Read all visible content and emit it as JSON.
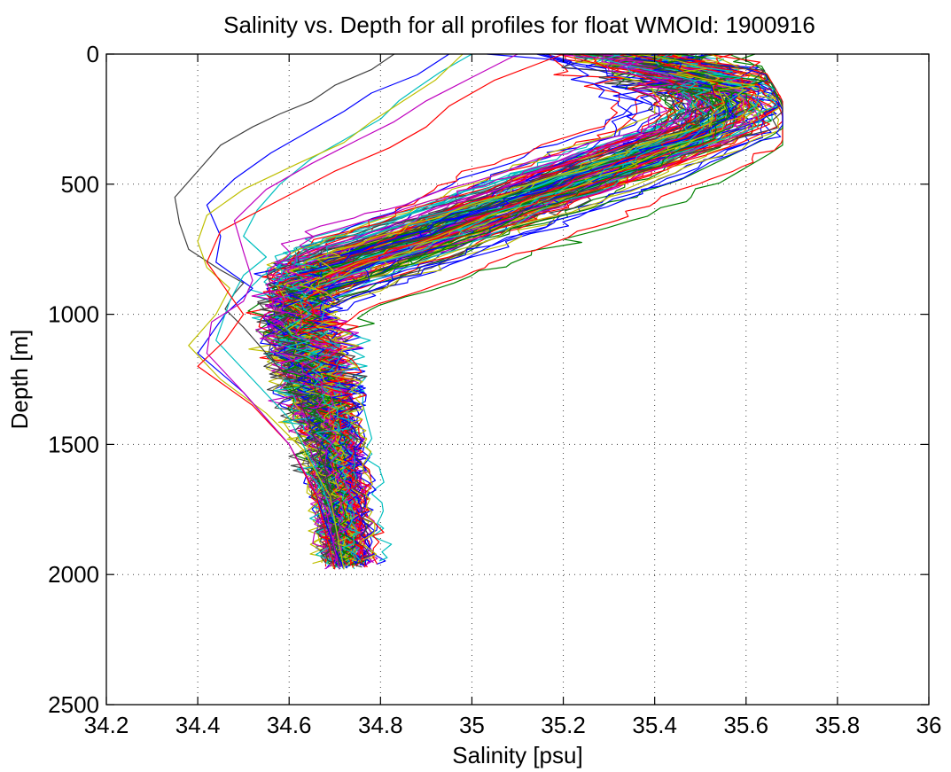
{
  "chart_data": {
    "type": "line",
    "title": "Salinity vs. Depth for all profiles for float WMOId: 1900916",
    "xlabel": "Salinity [psu]",
    "ylabel": "Depth [m]",
    "xlim": [
      34.2,
      36
    ],
    "ylim": [
      0,
      2500
    ],
    "y_reversed": true,
    "grid": true,
    "x_ticks": [
      "34.2",
      "34.4",
      "34.6",
      "34.8",
      "35",
      "35.2",
      "35.4",
      "35.6",
      "35.8",
      "36"
    ],
    "y_ticks": [
      "0",
      "500",
      "1000",
      "1500",
      "2000",
      "2500"
    ],
    "color_cycle": [
      "#0000ff",
      "#008000",
      "#ff0000",
      "#00bfbf",
      "#bf00bf",
      "#bfbf00",
      "#404040"
    ],
    "profile_count_approx": 160,
    "envelope": {
      "depth": [
        0,
        100,
        200,
        300,
        500,
        700,
        850,
        1000,
        1200,
        1500,
        1800,
        1980
      ],
      "typical_salinity": [
        35.35,
        35.5,
        35.55,
        35.5,
        35.2,
        34.9,
        34.65,
        34.6,
        34.66,
        34.7,
        34.72,
        34.73
      ],
      "min_salinity": [
        34.82,
        34.72,
        34.55,
        34.45,
        34.35,
        34.38,
        34.4,
        34.47,
        34.35,
        34.48,
        34.6,
        34.68
      ],
      "max_salinity": [
        35.62,
        35.65,
        35.68,
        35.68,
        35.45,
        35.3,
        35.0,
        34.82,
        34.78,
        34.76,
        34.8,
        34.83
      ]
    },
    "series": [
      {
        "depth": [
          0,
          60,
          120,
          180,
          230,
          280,
          350,
          450,
          550,
          650,
          750,
          830,
          880,
          920,
          980,
          1050,
          1150,
          1250,
          1400,
          1600,
          1800,
          1980
        ],
        "salinity": [
          34.83,
          34.78,
          34.7,
          34.65,
          34.58,
          34.52,
          34.45,
          34.4,
          34.35,
          34.36,
          34.38,
          34.45,
          34.5,
          34.48,
          34.46,
          34.5,
          34.55,
          34.6,
          34.64,
          34.68,
          34.7,
          34.71
        ],
        "color": "#404040"
      },
      {
        "depth": [
          0,
          80,
          150,
          220,
          300,
          380,
          480,
          580,
          700,
          800,
          900,
          1000,
          1150,
          1300,
          1500,
          1700,
          1900,
          1980
        ],
        "salinity": [
          34.95,
          34.88,
          34.78,
          34.72,
          34.64,
          34.56,
          34.48,
          34.42,
          34.45,
          34.44,
          34.52,
          34.46,
          34.4,
          34.5,
          34.6,
          34.66,
          34.7,
          34.72
        ],
        "color": "#0000ff"
      },
      {
        "depth": [
          0,
          70,
          130,
          180,
          250,
          330,
          400,
          500,
          600,
          700,
          780,
          850,
          950,
          1100,
          1250,
          1400,
          1600,
          1800,
          1980
        ],
        "salinity": [
          35.0,
          34.93,
          34.88,
          34.84,
          34.8,
          34.72,
          34.65,
          34.58,
          34.53,
          34.5,
          34.55,
          34.5,
          34.47,
          34.44,
          34.52,
          34.6,
          34.66,
          34.7,
          34.72
        ],
        "color": "#00bfbf"
      },
      {
        "depth": [
          0,
          100,
          180,
          260,
          340,
          420,
          520,
          620,
          720,
          820,
          900,
          1000,
          1120,
          1250,
          1380,
          1520,
          1700,
          1980
        ],
        "salinity": [
          34.98,
          34.92,
          34.85,
          34.78,
          34.72,
          34.62,
          34.5,
          34.42,
          34.4,
          34.42,
          34.47,
          34.44,
          34.38,
          34.45,
          34.55,
          34.63,
          34.69,
          34.72
        ],
        "color": "#bfbf00"
      },
      {
        "depth": [
          0,
          100,
          200,
          280,
          360,
          450,
          560,
          680,
          800,
          900,
          1000,
          1100,
          1200,
          1350,
          1500,
          1700,
          1980
        ],
        "salinity": [
          35.2,
          35.05,
          34.95,
          34.9,
          34.82,
          34.7,
          34.58,
          34.45,
          34.42,
          34.46,
          34.5,
          34.46,
          34.4,
          34.52,
          34.6,
          34.66,
          34.7
        ],
        "color": "#ff0000"
      },
      {
        "depth": [
          0,
          90,
          180,
          260,
          330,
          420,
          520,
          640,
          760,
          870,
          950,
          1030,
          1150,
          1300,
          1500,
          1750,
          1980
        ],
        "salinity": [
          35.1,
          35.0,
          34.9,
          34.83,
          34.75,
          34.65,
          34.55,
          34.48,
          34.5,
          34.52,
          34.5,
          34.43,
          34.42,
          34.5,
          34.6,
          34.68,
          34.71
        ],
        "color": "#bf00bf"
      }
    ]
  }
}
